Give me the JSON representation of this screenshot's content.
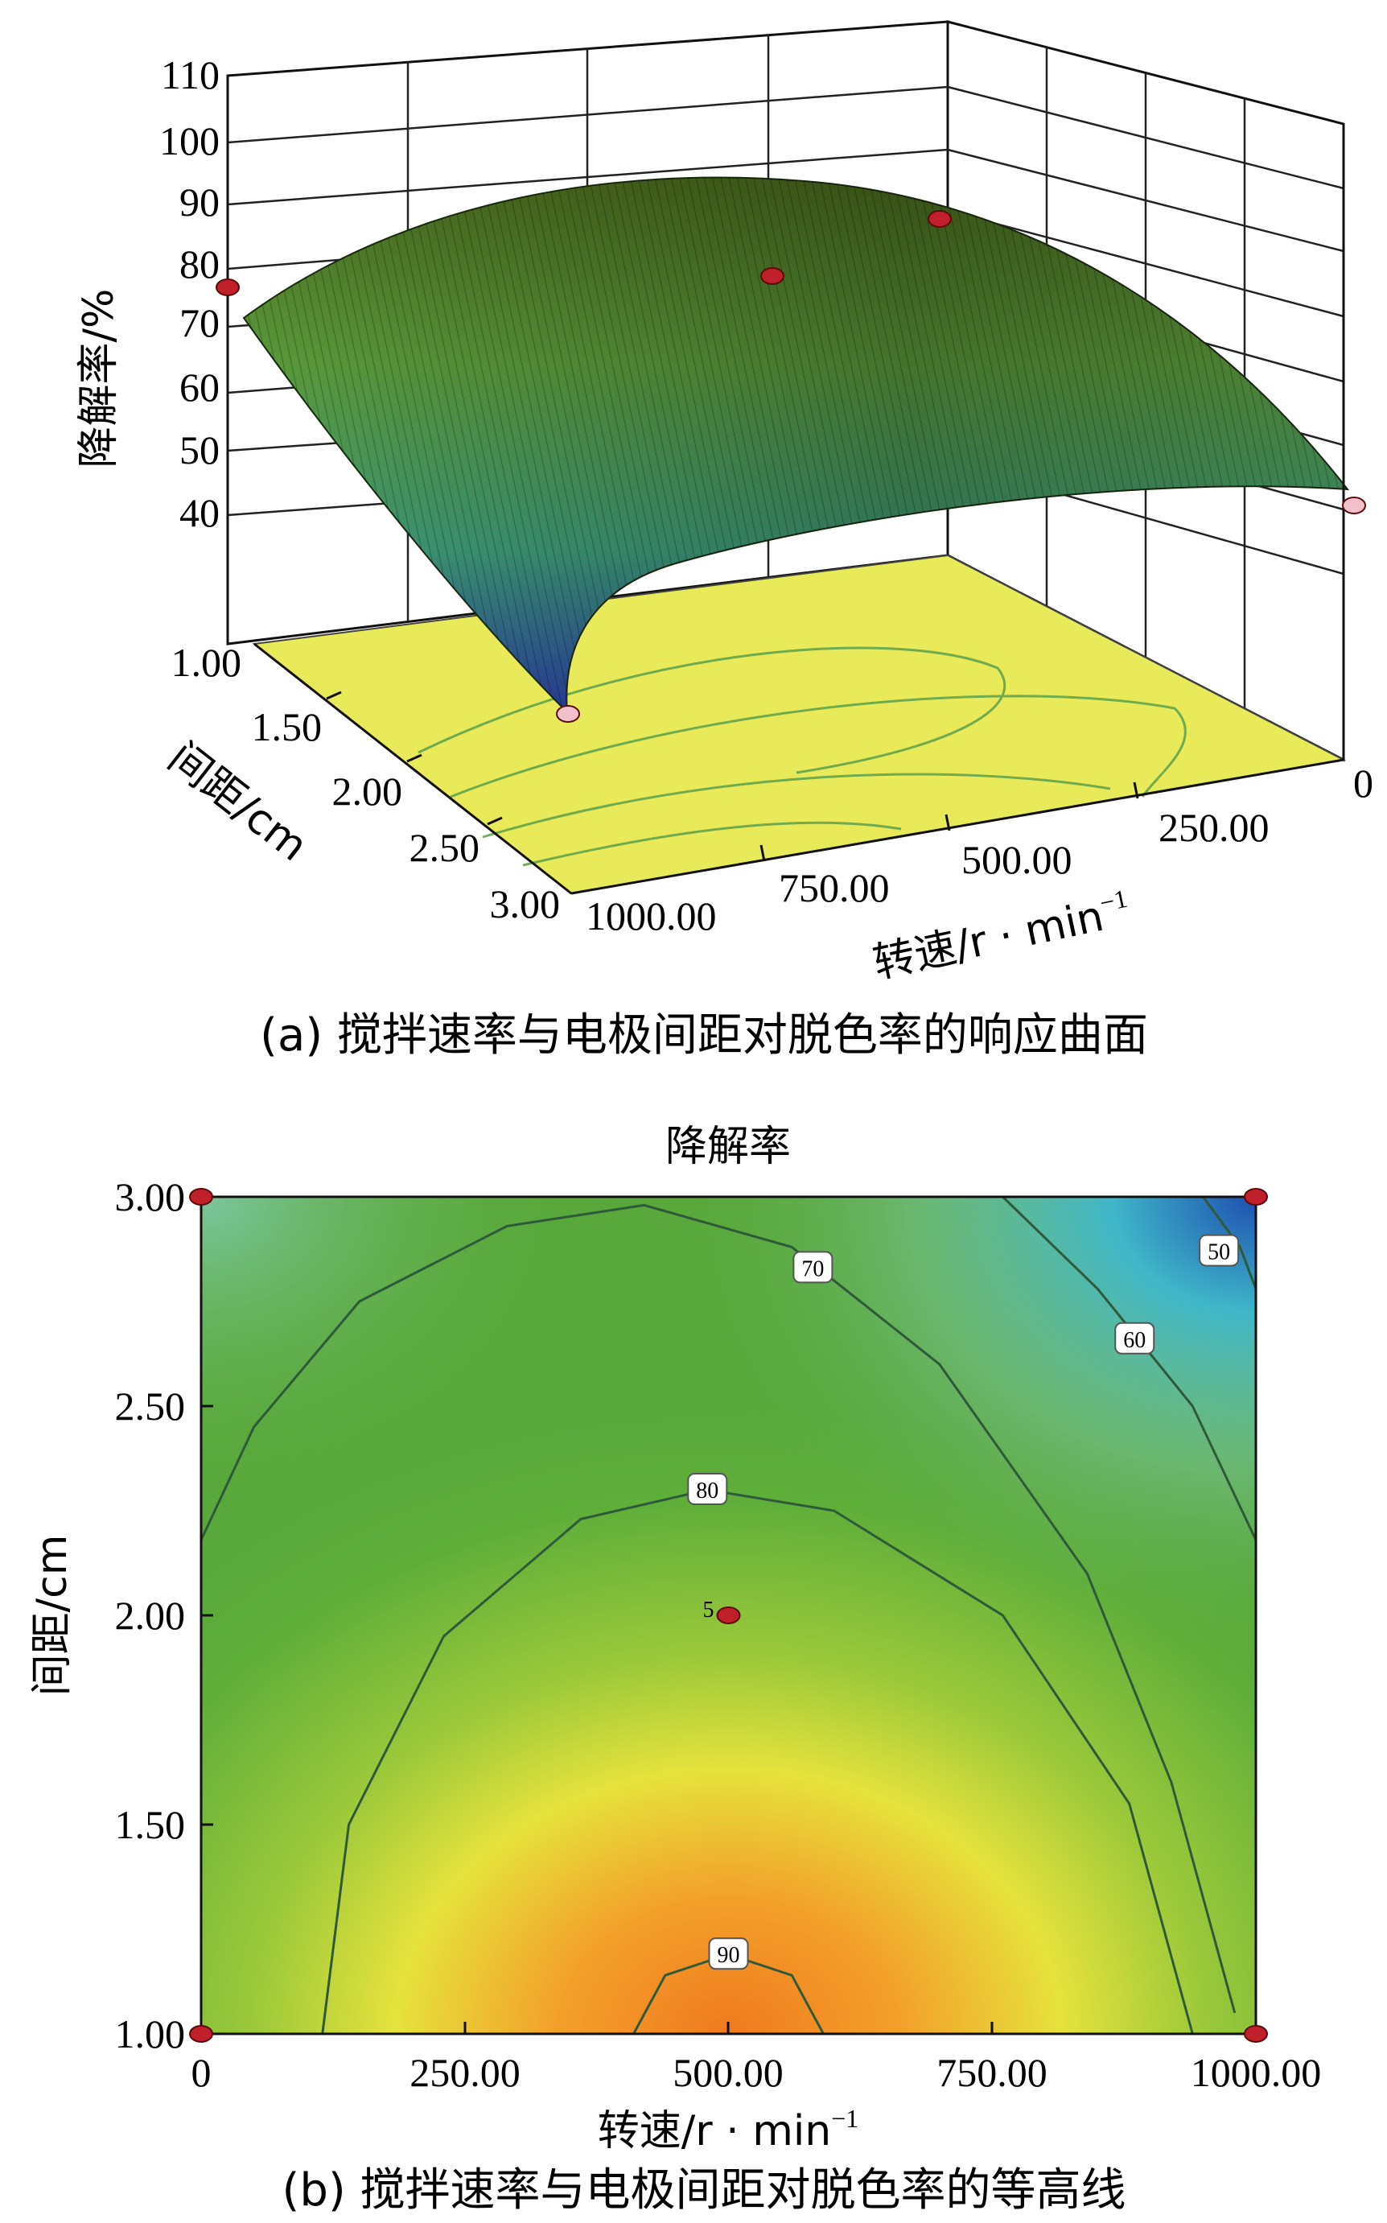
{
  "chart_data": [
    {
      "panel": "a",
      "type": "surface",
      "caption": "(a) 搅拌速率与电极间距对脱色率的响应曲面",
      "zlabel": "降解率/%",
      "xlabel": "转速/r · min",
      "xlabel_sup": "−1",
      "ylabel": "间距/cm",
      "z_ticks": [
        "110",
        "100",
        "90",
        "80",
        "70",
        "60",
        "50",
        "40"
      ],
      "zlim": [
        40,
        110
      ],
      "x_ticks": [
        "0",
        "250.00",
        "500.00",
        "750.00",
        "1000.00"
      ],
      "y_ticks": [
        "1.00",
        "1.50",
        "2.00",
        "2.50",
        "3.00"
      ],
      "xlim": [
        0,
        1000
      ],
      "ylim": [
        1,
        3
      ],
      "corner_values": [
        {
          "x": 1000,
          "y": 1,
          "z": 74
        },
        {
          "x": 1000,
          "y": 3,
          "z": 42
        },
        {
          "x": 0,
          "y": 3,
          "z": 50
        },
        {
          "x": 500,
          "y": 2,
          "z": 84
        },
        {
          "x": 0,
          "y": 1,
          "z": 77
        }
      ],
      "colors": {
        "low": "#1f3da6",
        "mid": "#2f8f4f",
        "high": "#5a8a2a",
        "floor": "#e8ea5a"
      }
    },
    {
      "panel": "b",
      "type": "contour",
      "title": "降解率",
      "caption": "(b) 搅拌速率与电极间距对脱色率的等高线",
      "xlabel": "转速/r · min",
      "xlabel_sup": "−1",
      "ylabel": "间距/cm",
      "x_ticks": [
        "0",
        "250.00",
        "500.00",
        "750.00",
        "1000.00"
      ],
      "y_ticks": [
        "3.00",
        "2.50",
        "2.00",
        "1.50",
        "1.00"
      ],
      "xlim": [
        0,
        1000
      ],
      "ylim": [
        1,
        3
      ],
      "contours": [
        {
          "level": 90,
          "label": "90"
        },
        {
          "level": 80,
          "label": "80"
        },
        {
          "level": 70,
          "label": "70"
        },
        {
          "level": 60,
          "label": "60"
        },
        {
          "level": 50,
          "label": "50"
        }
      ],
      "design_points": [
        {
          "x": 0,
          "y": 3
        },
        {
          "x": 1000,
          "y": 3
        },
        {
          "x": 500,
          "y": 2,
          "label": "5"
        },
        {
          "x": 0,
          "y": 1
        },
        {
          "x": 1000,
          "y": 1
        }
      ],
      "colors": {
        "high": "#f07a1e",
        "mid": "#e6e23c",
        "green": "#5fae3a",
        "low": "#1e4fb0",
        "cyan": "#3fb7c9",
        "point": "#c0202a"
      }
    }
  ]
}
